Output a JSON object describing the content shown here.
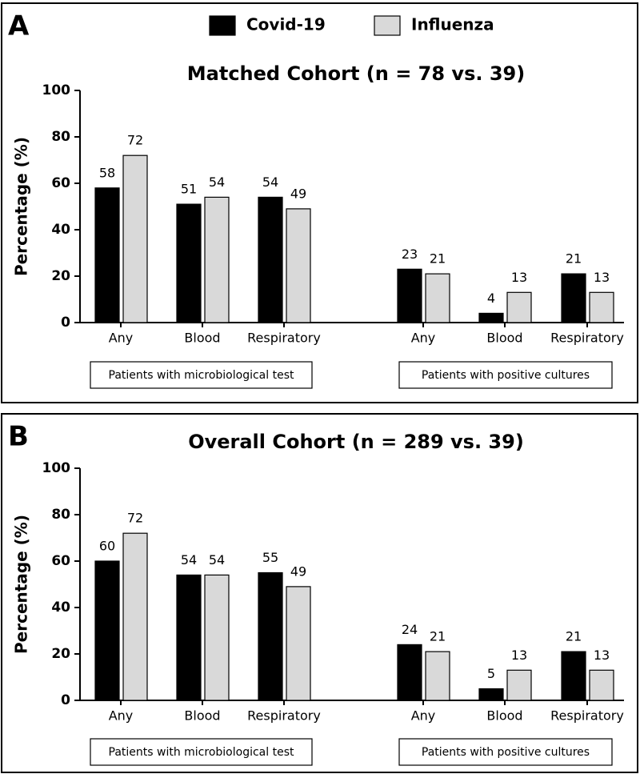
{
  "chart_data": [
    {
      "type": "bar",
      "panel": "A",
      "title": "Matched Cohort (n = 78 vs. 39)",
      "y_label": "Percentage (%)",
      "categories": [
        "Any",
        "Blood",
        "Respiratory",
        "Any",
        "Blood",
        "Respiratory"
      ],
      "groups": [
        "Patients with microbiological test",
        "Patients with positive cultures"
      ],
      "series": [
        {
          "name": "Covid-19",
          "color": "#000000",
          "values": [
            58,
            51,
            54,
            23,
            4,
            21
          ]
        },
        {
          "name": "Influenza",
          "color": "#d9d9d9",
          "values": [
            72,
            54,
            49,
            21,
            13,
            13
          ]
        }
      ],
      "ylim": [
        0,
        100
      ],
      "yticks": [
        0,
        20,
        40,
        60,
        80,
        100
      ],
      "legend": "top"
    },
    {
      "type": "bar",
      "panel": "B",
      "title": "Overall Cohort (n = 289 vs. 39)",
      "y_label": "Percentage (%)",
      "categories": [
        "Any",
        "Blood",
        "Respiratory",
        "Any",
        "Blood",
        "Respiratory"
      ],
      "groups": [
        "Patients with microbiological test",
        "Patients with positive cultures"
      ],
      "series": [
        {
          "name": "Covid-19",
          "color": "#000000",
          "values": [
            60,
            54,
            55,
            24,
            5,
            21
          ]
        },
        {
          "name": "Influenza",
          "color": "#d9d9d9",
          "values": [
            72,
            54,
            49,
            21,
            13,
            13
          ]
        }
      ],
      "ylim": [
        0,
        100
      ],
      "yticks": [
        0,
        20,
        40,
        60,
        80,
        100
      ]
    }
  ]
}
